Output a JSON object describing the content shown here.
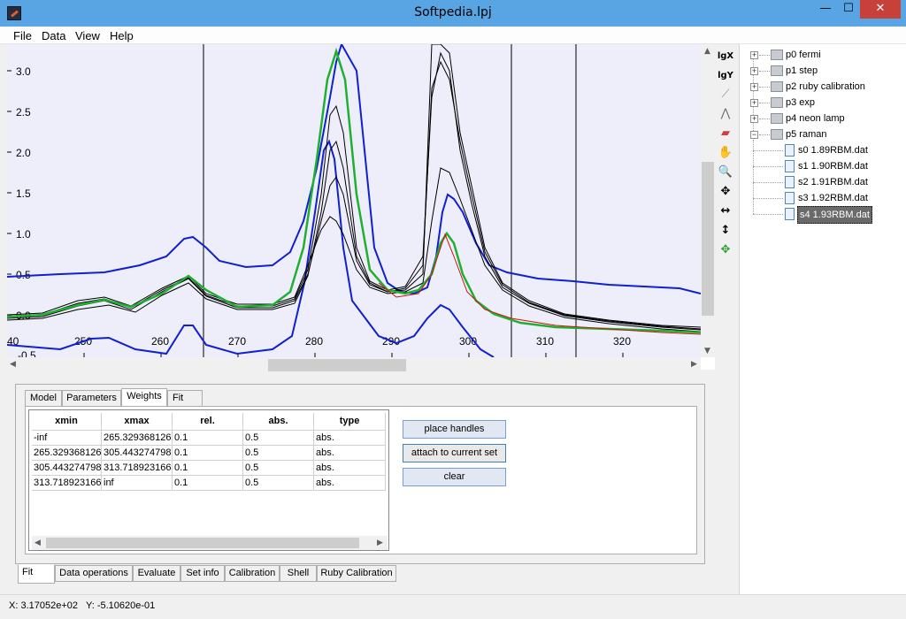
{
  "window": {
    "title": "Softpedia.lpj",
    "minimize": "—",
    "maximize": "☐",
    "close": "✕"
  },
  "menu": [
    "File",
    "Data",
    "View",
    "Help"
  ],
  "plot": {
    "x_ticks": [
      "40",
      "250",
      "260",
      "270",
      "280",
      "290",
      "300",
      "310",
      "320"
    ],
    "y_ticks": [
      "3.0",
      "2.5",
      "2.0",
      "1.5",
      "1.0",
      "0.5",
      "0.0",
      "-0.5"
    ],
    "colors": {
      "background": "#eeeefb",
      "envelope": "#1020d0",
      "fit": "#20b030",
      "residual": "#d01010",
      "data": "#000000"
    }
  },
  "toolbar": [
    "lgX",
    "lgY",
    "line-tool-icon",
    "peak-icon",
    "eraser-icon",
    "hand-icon",
    "zoom-icon",
    "move-icon",
    "horizontal-move-icon",
    "vertical-move-icon",
    "pan-icon"
  ],
  "tree": {
    "items": [
      {
        "label": "p0 fermi"
      },
      {
        "label": "p1 step"
      },
      {
        "label": "p2 ruby calibration"
      },
      {
        "label": "p3 exp"
      },
      {
        "label": "p4 neon lamp"
      },
      {
        "label": "p5 raman"
      }
    ],
    "children": [
      {
        "label": "s0 1.89RBM.dat"
      },
      {
        "label": "s1 1.90RBM.dat"
      },
      {
        "label": "s2 1.91RBM.dat"
      },
      {
        "label": "s3 1.92RBM.dat"
      },
      {
        "label": "s4 1.93RBM.dat"
      }
    ]
  },
  "tabs": [
    "Model",
    "Parameters",
    "Weights",
    "Fit"
  ],
  "table": {
    "headers": [
      "xmin",
      "xmax",
      "rel.",
      "abs.",
      "type"
    ],
    "rows": [
      [
        "-inf",
        "265.329368126",
        "0.1",
        "0.5",
        "abs."
      ],
      [
        "265.329368126",
        "305.443274798",
        "0.1",
        "0.5",
        "abs."
      ],
      [
        "305.443274798",
        "313.718923166",
        "0.1",
        "0.5",
        "abs."
      ],
      [
        "313.718923166",
        "inf",
        "0.1",
        "0.5",
        "abs."
      ]
    ]
  },
  "buttons": {
    "place_handles": "place handles",
    "attach": "attach to current set",
    "clear": "clear"
  },
  "bottom_tabs": [
    "Fit",
    "Data operations",
    "Evaluate",
    "Set info",
    "Calibration",
    "Shell",
    "Ruby Calibration"
  ],
  "status": {
    "x": "X: 3.17052e+02",
    "y": "Y: -5.10620e-01"
  }
}
